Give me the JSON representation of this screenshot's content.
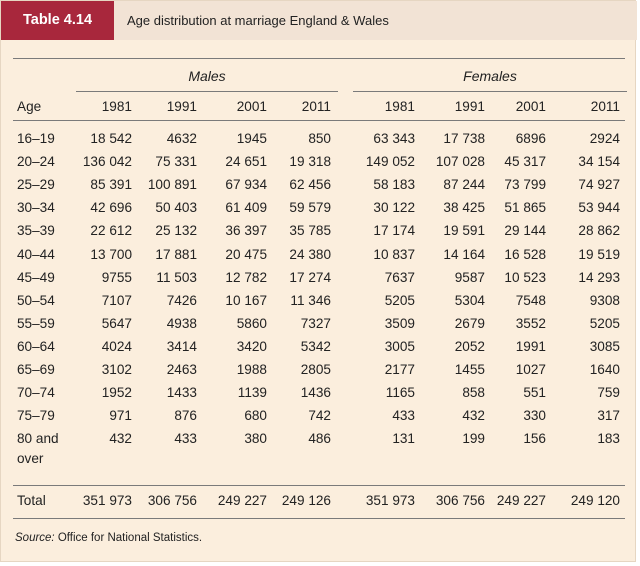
{
  "table_number": "Table 4.14",
  "title": "Age distribution at marriage England & Wales",
  "group_males": "Males",
  "group_females": "Females",
  "col_age": "Age",
  "years": [
    "1981",
    "1991",
    "2001",
    "2011"
  ],
  "rows": [
    {
      "age": "16–19",
      "males": [
        "18 542",
        "4632",
        "1945",
        "850"
      ],
      "females": [
        "63 343",
        "17 738",
        "6896",
        "2924"
      ]
    },
    {
      "age": "20–24",
      "males": [
        "136 042",
        "75 331",
        "24 651",
        "19 318"
      ],
      "females": [
        "149 052",
        "107 028",
        "45 317",
        "34 154"
      ]
    },
    {
      "age": "25–29",
      "males": [
        "85 391",
        "100 891",
        "67 934",
        "62 456"
      ],
      "females": [
        "58 183",
        "87 244",
        "73 799",
        "74 927"
      ]
    },
    {
      "age": "30–34",
      "males": [
        "42 696",
        "50 403",
        "61 409",
        "59 579"
      ],
      "females": [
        "30 122",
        "38 425",
        "51 865",
        "53 944"
      ]
    },
    {
      "age": "35–39",
      "males": [
        "22 612",
        "25 132",
        "36 397",
        "35 785"
      ],
      "females": [
        "17 174",
        "19 591",
        "29 144",
        "28 862"
      ]
    },
    {
      "age": "40–44",
      "males": [
        "13 700",
        "17 881",
        "20 475",
        "24 380"
      ],
      "females": [
        "10 837",
        "14 164",
        "16 528",
        "19 519"
      ]
    },
    {
      "age": "45–49",
      "males": [
        "9755",
        "11 503",
        "12 782",
        "17 274"
      ],
      "females": [
        "7637",
        "9587",
        "10 523",
        "14 293"
      ]
    },
    {
      "age": "50–54",
      "males": [
        "7107",
        "7426",
        "10 167",
        "11 346"
      ],
      "females": [
        "5205",
        "5304",
        "7548",
        "9308"
      ]
    },
    {
      "age": "55–59",
      "males": [
        "5647",
        "4938",
        "5860",
        "7327"
      ],
      "females": [
        "3509",
        "2679",
        "3552",
        "5205"
      ]
    },
    {
      "age": "60–64",
      "males": [
        "4024",
        "3414",
        "3420",
        "5342"
      ],
      "females": [
        "3005",
        "2052",
        "1991",
        "3085"
      ]
    },
    {
      "age": "65–69",
      "males": [
        "3102",
        "2463",
        "1988",
        "2805"
      ],
      "females": [
        "2177",
        "1455",
        "1027",
        "1640"
      ]
    },
    {
      "age": "70–74",
      "males": [
        "1952",
        "1433",
        "1139",
        "1436"
      ],
      "females": [
        "1165",
        "858",
        "551",
        "759"
      ]
    },
    {
      "age": "75–79",
      "males": [
        "971",
        "876",
        "680",
        "742"
      ],
      "females": [
        "433",
        "432",
        "330",
        "317"
      ]
    },
    {
      "age": "80 and",
      "age_line2": "over",
      "males": [
        "432",
        "433",
        "380",
        "486"
      ],
      "females": [
        "131",
        "199",
        "156",
        "183"
      ]
    }
  ],
  "total": {
    "label": "Total",
    "males": [
      "351 973",
      "306 756",
      "249 227",
      "249 126"
    ],
    "females": [
      "351 973",
      "306 756",
      "249 227",
      "249 120"
    ]
  },
  "source_label": "Source:",
  "source_text": "Office for National Statistics."
}
